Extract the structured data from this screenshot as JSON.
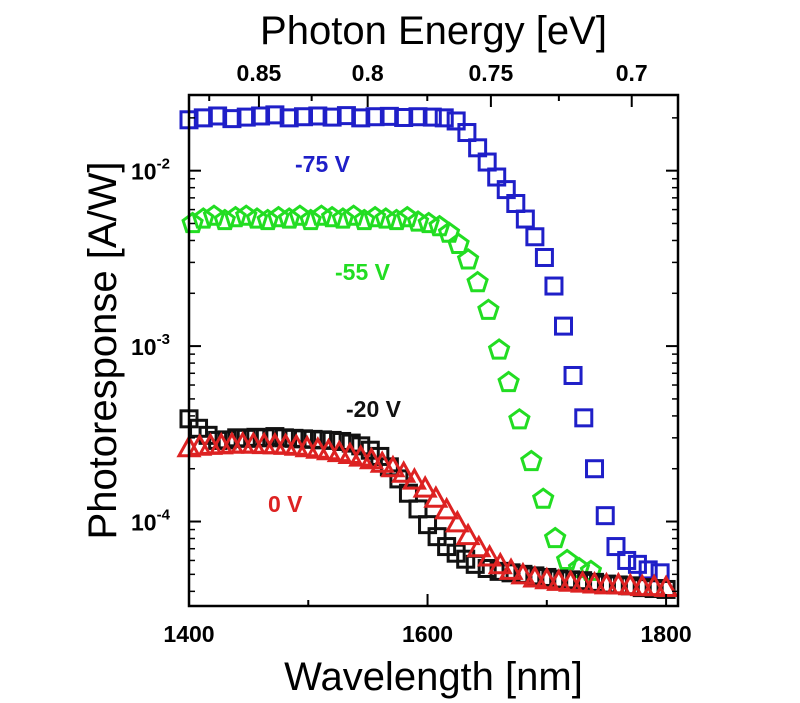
{
  "chart_data": {
    "type": "scatter",
    "xlabel": "Wavelength [nm]",
    "x2label": "Photon Energy [eV]",
    "ylabel": "Photoresponse [A/W]",
    "xlim": [
      1400,
      1810
    ],
    "ylim": [
      3.3e-05,
      0.027
    ],
    "yscale": "log",
    "grid": false,
    "x_ticks": [
      {
        "value": 1400,
        "label": "1400"
      },
      {
        "value": 1600,
        "label": "1600"
      },
      {
        "value": 1800,
        "label": "1800"
      }
    ],
    "x2_ticks": [
      {
        "value": 0.85,
        "label": "0.85"
      },
      {
        "value": 0.8,
        "label": "0.8"
      },
      {
        "value": 0.75,
        "label": "0.75"
      },
      {
        "value": 0.7,
        "label": "0.7"
      }
    ],
    "y_ticks": [
      {
        "value": 0.0001,
        "base": "10",
        "exp": "-4"
      },
      {
        "value": 0.001,
        "base": "10",
        "exp": "-3"
      },
      {
        "value": 0.01,
        "base": "10",
        "exp": "-2"
      }
    ],
    "series": [
      {
        "name": "-75 V",
        "marker": "square",
        "color": "#1f1fc8",
        "x": [
          1400,
          1412,
          1424,
          1436,
          1448,
          1460,
          1472,
          1484,
          1496,
          1508,
          1520,
          1532,
          1544,
          1556,
          1568,
          1580,
          1592,
          1604,
          1614,
          1624,
          1633,
          1642,
          1650,
          1658,
          1666,
          1674,
          1682,
          1690,
          1698,
          1706,
          1714,
          1722,
          1731,
          1740,
          1749,
          1758,
          1767,
          1776,
          1785,
          1795
        ],
        "y": [
          0.0195,
          0.02,
          0.0205,
          0.0198,
          0.0202,
          0.0205,
          0.0208,
          0.02,
          0.0203,
          0.0205,
          0.0202,
          0.0206,
          0.02,
          0.0203,
          0.0204,
          0.0201,
          0.0203,
          0.0202,
          0.02,
          0.0192,
          0.0165,
          0.0135,
          0.0112,
          0.0092,
          0.0078,
          0.0065,
          0.0053,
          0.0042,
          0.0032,
          0.0022,
          0.0013,
          0.00068,
          0.00039,
          0.0002,
          0.000108,
          7.2e-05,
          6e-05,
          5.7e-05,
          5.3e-05,
          5.1e-05
        ]
      },
      {
        "name": "-55 V",
        "marker": "pentagon",
        "color": "#22dd22",
        "x": [
          1403,
          1412,
          1421,
          1430,
          1439,
          1448,
          1457,
          1466,
          1475,
          1484,
          1493,
          1502,
          1511,
          1520,
          1529,
          1538,
          1547,
          1556,
          1565,
          1574,
          1583,
          1592,
          1601,
          1610,
          1618,
          1626,
          1634,
          1642,
          1651,
          1660,
          1668,
          1677,
          1687,
          1697,
          1707,
          1717,
          1727,
          1737
        ],
        "y": [
          0.005,
          0.0053,
          0.0055,
          0.0052,
          0.0054,
          0.0055,
          0.0053,
          0.0052,
          0.0054,
          0.0053,
          0.0055,
          0.0052,
          0.0055,
          0.0054,
          0.0053,
          0.0055,
          0.0052,
          0.0054,
          0.0053,
          0.0052,
          0.0054,
          0.0051,
          0.005,
          0.0048,
          0.0044,
          0.0038,
          0.0031,
          0.0023,
          0.0016,
          0.00095,
          0.00062,
          0.00038,
          0.00022,
          0.000134,
          8e-05,
          6e-05,
          5.4e-05,
          5.2e-05
        ]
      },
      {
        "name": "-20 V",
        "marker": "square",
        "color": "#111111",
        "x": [
          1400,
          1408,
          1416,
          1424,
          1432,
          1440,
          1448,
          1456,
          1464,
          1472,
          1480,
          1488,
          1496,
          1504,
          1512,
          1520,
          1528,
          1536,
          1544,
          1552,
          1560,
          1568,
          1576,
          1584,
          1592,
          1600,
          1608,
          1616,
          1624,
          1632,
          1640,
          1650,
          1660,
          1670,
          1680,
          1690,
          1700,
          1710,
          1720,
          1730,
          1740,
          1750,
          1760,
          1770,
          1780,
          1790,
          1800
        ],
        "y": [
          0.000385,
          0.00034,
          0.00031,
          0.00029,
          0.000292,
          0.0003,
          0.000298,
          0.000302,
          0.0003,
          0.000305,
          0.0003,
          0.000298,
          0.000296,
          0.000294,
          0.000292,
          0.00029,
          0.000286,
          0.00028,
          0.00027,
          0.000255,
          0.000235,
          0.000205,
          0.000175,
          0.000145,
          0.000118,
          9.6e-05,
          8.2e-05,
          7.2e-05,
          6.6e-05,
          6.1e-05,
          5.7e-05,
          5.4e-05,
          5.2e-05,
          5.1e-05,
          5e-05,
          4.9e-05,
          4.8e-05,
          4.7e-05,
          4.65e-05,
          4.6e-05,
          4.5e-05,
          4.4e-05,
          4.35e-05,
          4.3e-05,
          4.2e-05,
          4.15e-05,
          4.1e-05
        ]
      },
      {
        "name": "0 V",
        "marker": "triangle",
        "color": "#dd2222",
        "x": [
          1400,
          1409,
          1418,
          1427,
          1436,
          1445,
          1454,
          1463,
          1472,
          1481,
          1490,
          1499,
          1508,
          1517,
          1526,
          1535,
          1544,
          1553,
          1562,
          1571,
          1580,
          1589,
          1598,
          1607,
          1616,
          1625,
          1634,
          1643,
          1652,
          1661,
          1670,
          1680,
          1690,
          1700,
          1710,
          1720,
          1730,
          1740,
          1750,
          1760,
          1770,
          1780,
          1790,
          1800
        ],
        "y": [
          0.00026,
          0.000265,
          0.000268,
          0.00027,
          0.000272,
          0.000273,
          0.000272,
          0.000271,
          0.00027,
          0.000268,
          0.000265,
          0.00026,
          0.000255,
          0.00025,
          0.000244,
          0.000238,
          0.00023,
          0.000222,
          0.000212,
          0.0002,
          0.000186,
          0.00017,
          0.000153,
          0.000134,
          0.000115,
          9.7e-05,
          8.2e-05,
          7e-05,
          6.2e-05,
          5.6e-05,
          5.2e-05,
          4.9e-05,
          4.7e-05,
          4.6e-05,
          4.5e-05,
          4.45e-05,
          4.4e-05,
          4.35e-05,
          4.3e-05,
          4.3e-05,
          4.25e-05,
          4.2e-05,
          4.2e-05,
          4.15e-05
        ]
      }
    ],
    "annotations": [
      {
        "text": "-75 V",
        "color": "#1f1fc8"
      },
      {
        "text": "-55 V",
        "color": "#22dd22"
      },
      {
        "text": "-20 V",
        "color": "#111111"
      },
      {
        "text": "0 V",
        "color": "#dd2222"
      }
    ]
  }
}
